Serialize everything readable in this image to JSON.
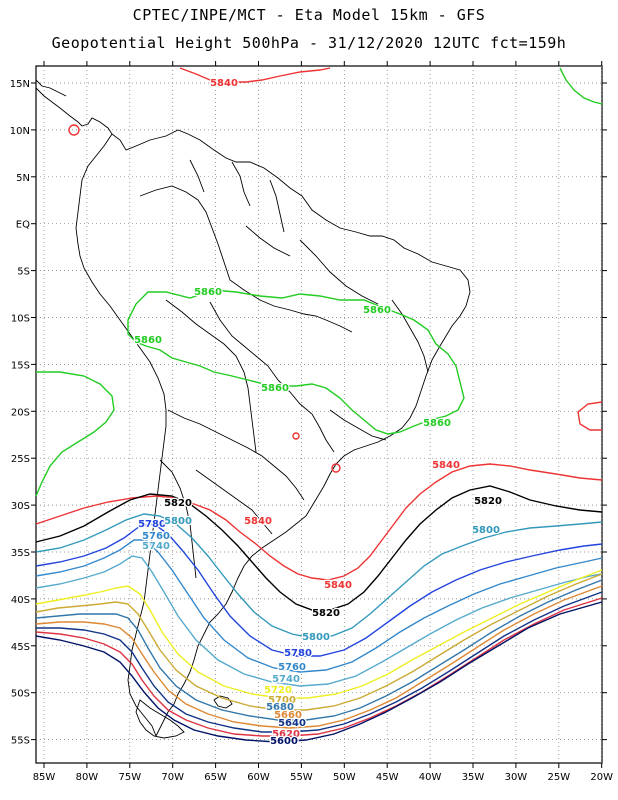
{
  "header": {
    "title_line1": "CPTEC/INPE/MCT  -   Eta Model 15km  -  GFS",
    "title_line2": "Geopotential Height 500hPa - 31/12/2020 12UTC fct=159h"
  },
  "axes": {
    "lat_labels": [
      "15N",
      "10N",
      "5N",
      "EQ",
      "5S",
      "10S",
      "15S",
      "20S",
      "25S",
      "30S",
      "35S",
      "40S",
      "45S",
      "50S",
      "55S"
    ],
    "lon_labels": [
      "85W",
      "80W",
      "75W",
      "70W",
      "65W",
      "60W",
      "55W",
      "50W",
      "45W",
      "40W",
      "35W",
      "30W",
      "25W",
      "20W"
    ]
  },
  "contour_colors": {
    "5860": "#22cc22",
    "5840": "#ee3333",
    "5820": "#000000",
    "5800": "#3399bb",
    "5780": "#2244dd",
    "5760": "#3388cc",
    "5740": "#55aacc",
    "5720": "#eeee22",
    "5700": "#ccaa33",
    "5680": "#3377aa",
    "5660": "#dd8833",
    "5640": "#113388",
    "5620": "#dd3344",
    "5600": "#001166"
  },
  "contour_labels": [
    {
      "text": "5840",
      "color_key": "5840"
    },
    {
      "text": "5860",
      "color_key": "5860"
    },
    {
      "text": "5860",
      "color_key": "5860"
    },
    {
      "text": "5860",
      "color_key": "5860"
    },
    {
      "text": "5860",
      "color_key": "5860"
    },
    {
      "text": "5860",
      "color_key": "5860"
    },
    {
      "text": "5840",
      "color_key": "5840"
    },
    {
      "text": "5820",
      "color_key": "5820"
    },
    {
      "text": "5820",
      "color_key": "5820"
    },
    {
      "text": "5840",
      "color_key": "5840"
    },
    {
      "text": "5840",
      "color_key": "5840"
    },
    {
      "text": "5800",
      "color_key": "5800"
    },
    {
      "text": "5780",
      "color_key": "5780"
    },
    {
      "text": "5800",
      "color_key": "5800"
    },
    {
      "text": "5760",
      "color_key": "5760"
    },
    {
      "text": "5740",
      "color_key": "5740"
    },
    {
      "text": "5820",
      "color_key": "5820"
    },
    {
      "text": "5800",
      "color_key": "5800"
    },
    {
      "text": "5780",
      "color_key": "5780"
    },
    {
      "text": "5760",
      "color_key": "5760"
    },
    {
      "text": "5740",
      "color_key": "5740"
    },
    {
      "text": "5720",
      "color_key": "5720"
    },
    {
      "text": "5700",
      "color_key": "5700"
    },
    {
      "text": "5680",
      "color_key": "5680"
    },
    {
      "text": "5660",
      "color_key": "5660"
    },
    {
      "text": "5640",
      "color_key": "5640"
    },
    {
      "text": "5620",
      "color_key": "5620"
    },
    {
      "text": "5600",
      "color_key": "5600"
    }
  ]
}
